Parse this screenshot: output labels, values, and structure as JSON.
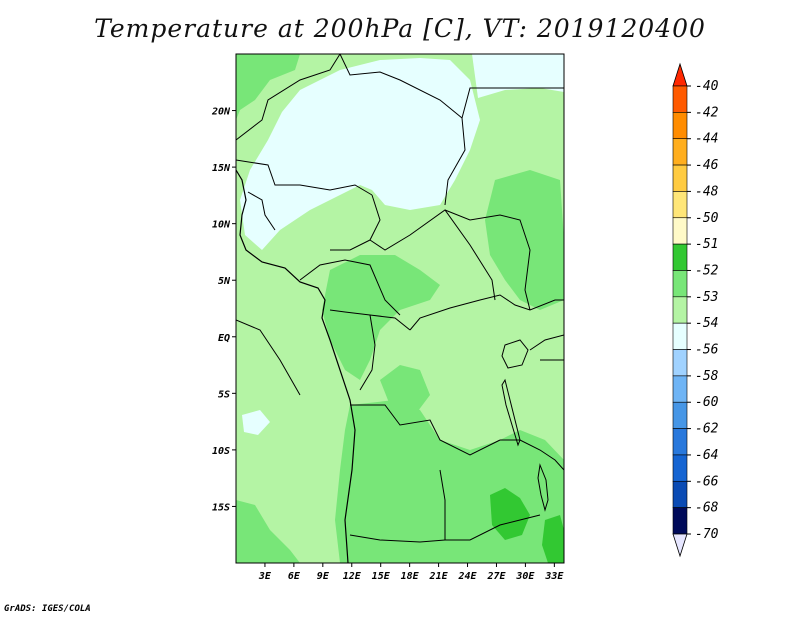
{
  "title": "Temperature at 200hPa [C], VT: 2019120400",
  "footer": "GrADS: IGES/COLA",
  "map": {
    "lon_range": [
      0,
      34
    ],
    "lat_range": [
      -20,
      25
    ],
    "lon_ticks": [
      "3E",
      "6E",
      "9E",
      "12E",
      "15E",
      "18E",
      "21E",
      "24E",
      "27E",
      "30E",
      "33E"
    ],
    "lat_ticks": [
      "20N",
      "15N",
      "10N",
      "5N",
      "EQ",
      "5S",
      "10S",
      "15S"
    ],
    "background_color": "#b4f4a4"
  },
  "colorbar": {
    "labels": [
      "-40",
      "-42",
      "-44",
      "-46",
      "-48",
      "-50",
      "-51",
      "-52",
      "-53",
      "-54",
      "-56",
      "-58",
      "-60",
      "-62",
      "-64",
      "-66",
      "-68",
      "-70"
    ],
    "colors": [
      "#ff2800",
      "#ff5a00",
      "#ff8c00",
      "#ffae1e",
      "#ffcb41",
      "#ffe678",
      "#fffac8",
      "#32c832",
      "#78e678",
      "#b4f4a4",
      "#e6ffff",
      "#a0d2ff",
      "#6eb4f5",
      "#4696e6",
      "#2878dc",
      "#1464d2",
      "#0a4bb4",
      "#000a5a",
      "#e6e6ff"
    ]
  }
}
